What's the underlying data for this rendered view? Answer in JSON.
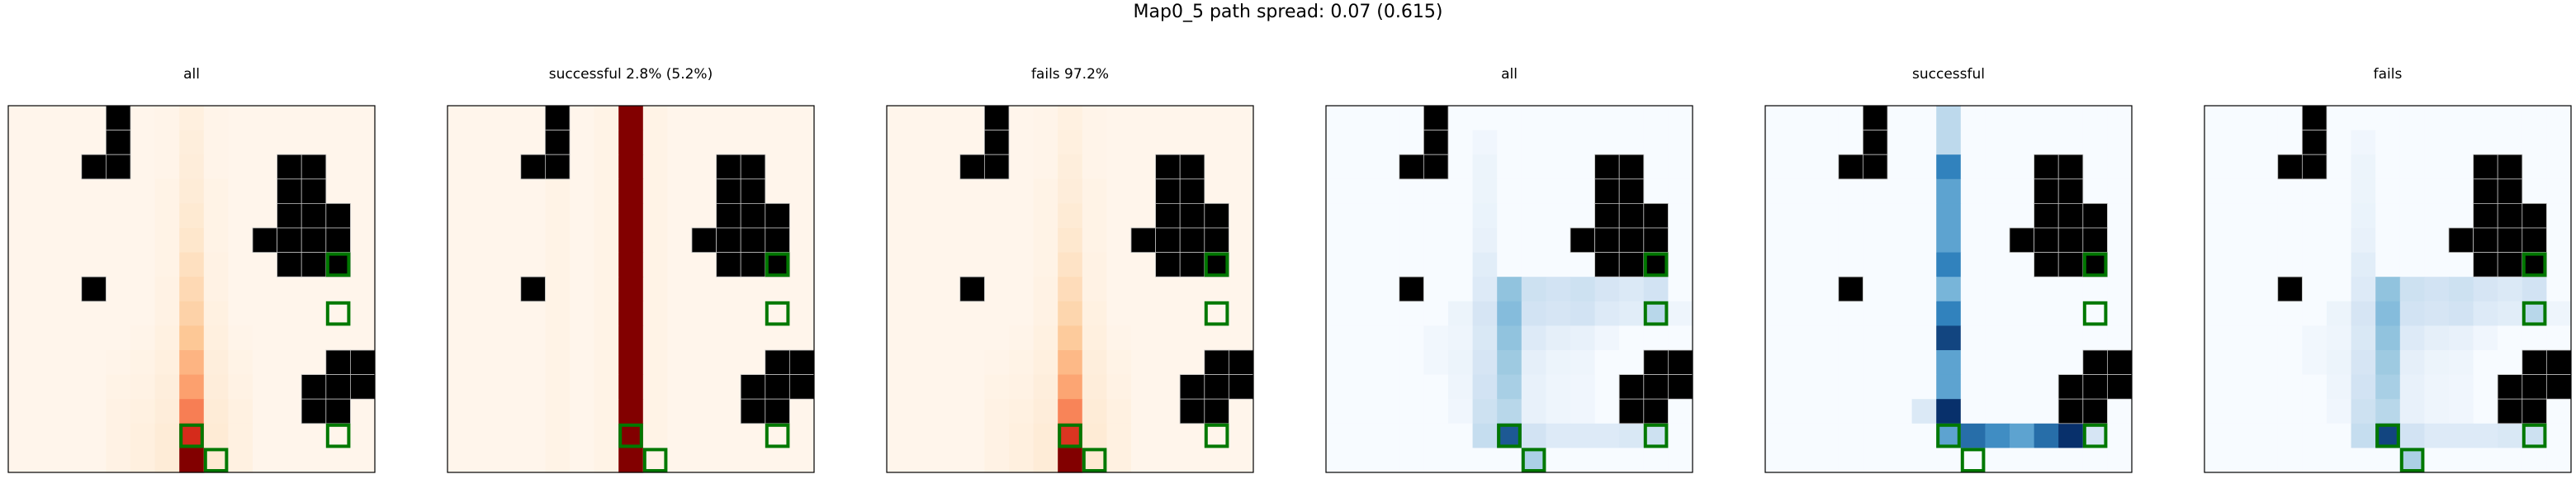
{
  "title": "Map0_5 path spread: 0.07 (0.615)",
  "chart_data": {
    "type": "heatmap",
    "grid_size": [
      15,
      15
    ],
    "obstacles": [
      [
        4,
        0
      ],
      [
        4,
        1
      ],
      [
        3,
        2
      ],
      [
        4,
        2
      ],
      [
        11,
        2
      ],
      [
        12,
        2
      ],
      [
        11,
        3
      ],
      [
        12,
        3
      ],
      [
        11,
        4
      ],
      [
        12,
        4
      ],
      [
        13,
        4
      ],
      [
        10,
        5
      ],
      [
        11,
        5
      ],
      [
        12,
        5
      ],
      [
        13,
        5
      ],
      [
        11,
        6
      ],
      [
        12,
        6
      ],
      [
        13,
        6
      ],
      [
        3,
        7
      ],
      [
        13,
        10
      ],
      [
        14,
        10
      ],
      [
        12,
        11
      ],
      [
        13,
        11
      ],
      [
        14,
        11
      ],
      [
        12,
        12
      ],
      [
        13,
        12
      ]
    ],
    "highlight_cells": [
      [
        13,
        6
      ],
      [
        13,
        8
      ],
      [
        13,
        13
      ],
      [
        7,
        13
      ],
      [
        8,
        14
      ]
    ],
    "panels": [
      {
        "title": "all",
        "colormap": "Oranges-to-darkred",
        "columns": {
          "4": [
            0,
            0,
            0,
            0,
            0,
            0,
            0,
            0,
            0,
            0,
            0.01,
            0.02,
            0.03,
            0.03,
            0.03
          ],
          "5": [
            0,
            0,
            0,
            0,
            0,
            0,
            0,
            0,
            0,
            0.01,
            0.02,
            0.03,
            0.04,
            0.05,
            0.05
          ],
          "6": [
            0.01,
            0.01,
            0.01,
            0.02,
            0.02,
            0.02,
            0.02,
            0.03,
            0.03,
            0.04,
            0.05,
            0.06,
            0.07,
            0.08,
            0.08
          ],
          "7": [
            0.05,
            0.06,
            0.07,
            0.08,
            0.1,
            0.12,
            0.16,
            0.2,
            0.24,
            0.3,
            0.38,
            0.46,
            0.58,
            0.8,
            1.0
          ],
          "8": [
            0.01,
            0.01,
            0.01,
            0.02,
            0.02,
            0.02,
            0.03,
            0.03,
            0.04,
            0.05,
            0.06,
            0.07,
            0.08,
            0.09,
            0.1
          ],
          "9": [
            0,
            0,
            0,
            0,
            0,
            0,
            0,
            0,
            0,
            0.01,
            0.02,
            0.03,
            0.04,
            0.04,
            0.04
          ]
        }
      },
      {
        "title": "successful 2.8% (5.2%)",
        "colormap": "Oranges-to-darkred",
        "columns": {
          "4": [
            0.02,
            0.02,
            0.02,
            0.02,
            0.02,
            0.02,
            0.02,
            0.02,
            0.02,
            0.02,
            0.02,
            0.02,
            0.02,
            0.02,
            0.02
          ],
          "6": [
            0.02,
            0.02,
            0.02,
            0.02,
            0.02,
            0.02,
            0.02,
            0.02,
            0.02,
            0.02,
            0.02,
            0.02,
            0.02,
            0.02,
            0.02
          ],
          "7": [
            1,
            1,
            1,
            1,
            1,
            1,
            1,
            1,
            1,
            1,
            1,
            1,
            1,
            1,
            1
          ],
          "8": [
            0.02,
            0.02,
            0.02,
            0.02,
            0.02,
            0.02,
            0.02,
            0.02,
            0.02,
            0.02,
            0.02,
            0.02,
            0.02,
            0.02,
            0.02
          ]
        }
      },
      {
        "title": "fails 97.2%",
        "colormap": "Oranges-to-darkred",
        "columns": {
          "4": [
            0,
            0,
            0,
            0,
            0,
            0,
            0,
            0,
            0,
            0,
            0.01,
            0.02,
            0.03,
            0.03,
            0.03
          ],
          "5": [
            0,
            0,
            0,
            0,
            0,
            0,
            0,
            0,
            0,
            0.01,
            0.02,
            0.03,
            0.04,
            0.05,
            0.05
          ],
          "6": [
            0.01,
            0.01,
            0.01,
            0.02,
            0.02,
            0.02,
            0.02,
            0.03,
            0.03,
            0.04,
            0.05,
            0.06,
            0.07,
            0.08,
            0.08
          ],
          "7": [
            0.04,
            0.05,
            0.06,
            0.07,
            0.09,
            0.11,
            0.14,
            0.18,
            0.22,
            0.28,
            0.36,
            0.44,
            0.56,
            0.78,
            1.0
          ],
          "8": [
            0.01,
            0.01,
            0.01,
            0.02,
            0.02,
            0.02,
            0.03,
            0.03,
            0.04,
            0.05,
            0.06,
            0.07,
            0.08,
            0.09,
            0.1
          ],
          "9": [
            0,
            0,
            0,
            0,
            0,
            0,
            0,
            0,
            0,
            0.01,
            0.02,
            0.03,
            0.04,
            0.04,
            0.04
          ]
        }
      },
      {
        "title": "all",
        "colormap": "Blues",
        "cells": [
          [
            6,
            1,
            0.04
          ],
          [
            6,
            2,
            0.06
          ],
          [
            6,
            3,
            0.06
          ],
          [
            6,
            4,
            0.07
          ],
          [
            6,
            5,
            0.08
          ],
          [
            6,
            6,
            0.12
          ],
          [
            6,
            7,
            0.14
          ],
          [
            6,
            8,
            0.18
          ],
          [
            6,
            9,
            0.16
          ],
          [
            6,
            10,
            0.18
          ],
          [
            6,
            11,
            0.2
          ],
          [
            6,
            12,
            0.22
          ],
          [
            6,
            13,
            0.25
          ],
          [
            5,
            8,
            0.06
          ],
          [
            5,
            9,
            0.05
          ],
          [
            5,
            10,
            0.06
          ],
          [
            5,
            11,
            0.05
          ],
          [
            5,
            12,
            0.04
          ],
          [
            4,
            9,
            0.03
          ],
          [
            4,
            10,
            0.03
          ],
          [
            7,
            7,
            0.45
          ],
          [
            7,
            8,
            0.5
          ],
          [
            7,
            9,
            0.45
          ],
          [
            7,
            10,
            0.4
          ],
          [
            7,
            11,
            0.36
          ],
          [
            7,
            12,
            0.3
          ],
          [
            7,
            13,
            0.9
          ],
          [
            8,
            7,
            0.22
          ],
          [
            8,
            8,
            0.2
          ],
          [
            8,
            9,
            0.14
          ],
          [
            8,
            10,
            0.1
          ],
          [
            8,
            11,
            0.08
          ],
          [
            8,
            12,
            0.08
          ],
          [
            8,
            13,
            0.2
          ],
          [
            8,
            14,
            0.35
          ],
          [
            9,
            7,
            0.2
          ],
          [
            9,
            8,
            0.18
          ],
          [
            9,
            9,
            0.1
          ],
          [
            9,
            10,
            0.06
          ],
          [
            9,
            11,
            0.05
          ],
          [
            9,
            12,
            0.05
          ],
          [
            9,
            13,
            0.14
          ],
          [
            10,
            7,
            0.22
          ],
          [
            10,
            8,
            0.2
          ],
          [
            10,
            9,
            0.08
          ],
          [
            10,
            10,
            0.05
          ],
          [
            10,
            11,
            0.04
          ],
          [
            10,
            12,
            0.04
          ],
          [
            10,
            13,
            0.14
          ],
          [
            11,
            7,
            0.18
          ],
          [
            11,
            8,
            0.14
          ],
          [
            11,
            9,
            0.04
          ],
          [
            11,
            13,
            0.14
          ],
          [
            12,
            7,
            0.15
          ],
          [
            12,
            8,
            0.12
          ],
          [
            12,
            13,
            0.16
          ],
          [
            13,
            6,
            0.3
          ],
          [
            13,
            7,
            0.2
          ],
          [
            13,
            8,
            0.3
          ],
          [
            13,
            13,
            0.22
          ],
          [
            14,
            8,
            0.05
          ]
        ]
      },
      {
        "title": "successful",
        "colormap": "Blues",
        "cells": [
          [
            7,
            0,
            0.28
          ],
          [
            7,
            1,
            0.28
          ],
          [
            7,
            2,
            0.8
          ],
          [
            7,
            3,
            0.65
          ],
          [
            7,
            4,
            0.65
          ],
          [
            7,
            5,
            0.65
          ],
          [
            7,
            6,
            0.8
          ],
          [
            7,
            7,
            0.55
          ],
          [
            7,
            8,
            0.8
          ],
          [
            7,
            9,
            0.95
          ],
          [
            7,
            10,
            0.65
          ],
          [
            7,
            11,
            0.65
          ],
          [
            7,
            12,
            1.0
          ],
          [
            7,
            13,
            0.65
          ],
          [
            6,
            12,
            0.15
          ],
          [
            8,
            13,
            0.85
          ],
          [
            9,
            13,
            0.75
          ],
          [
            10,
            13,
            0.65
          ],
          [
            11,
            13,
            0.85
          ],
          [
            12,
            13,
            1.0
          ],
          [
            13,
            13,
            0.18
          ]
        ]
      },
      {
        "title": "fails",
        "colormap": "Blues",
        "cells": [
          [
            6,
            1,
            0.04
          ],
          [
            6,
            2,
            0.06
          ],
          [
            6,
            3,
            0.06
          ],
          [
            6,
            4,
            0.07
          ],
          [
            6,
            5,
            0.08
          ],
          [
            6,
            6,
            0.12
          ],
          [
            6,
            7,
            0.14
          ],
          [
            6,
            8,
            0.18
          ],
          [
            6,
            9,
            0.16
          ],
          [
            6,
            10,
            0.18
          ],
          [
            6,
            11,
            0.2
          ],
          [
            6,
            12,
            0.22
          ],
          [
            6,
            13,
            0.25
          ],
          [
            5,
            8,
            0.06
          ],
          [
            5,
            9,
            0.05
          ],
          [
            5,
            10,
            0.06
          ],
          [
            5,
            11,
            0.05
          ],
          [
            5,
            12,
            0.04
          ],
          [
            4,
            9,
            0.03
          ],
          [
            4,
            10,
            0.03
          ],
          [
            7,
            7,
            0.45
          ],
          [
            7,
            8,
            0.5
          ],
          [
            7,
            9,
            0.45
          ],
          [
            7,
            10,
            0.4
          ],
          [
            7,
            11,
            0.36
          ],
          [
            7,
            12,
            0.3
          ],
          [
            7,
            13,
            0.95
          ],
          [
            8,
            7,
            0.22
          ],
          [
            8,
            8,
            0.2
          ],
          [
            8,
            9,
            0.14
          ],
          [
            8,
            10,
            0.1
          ],
          [
            8,
            11,
            0.08
          ],
          [
            8,
            12,
            0.08
          ],
          [
            8,
            13,
            0.2
          ],
          [
            8,
            14,
            0.35
          ],
          [
            9,
            7,
            0.2
          ],
          [
            9,
            8,
            0.18
          ],
          [
            9,
            9,
            0.1
          ],
          [
            9,
            10,
            0.06
          ],
          [
            9,
            11,
            0.05
          ],
          [
            9,
            12,
            0.05
          ],
          [
            9,
            13,
            0.14
          ],
          [
            10,
            7,
            0.22
          ],
          [
            10,
            8,
            0.2
          ],
          [
            10,
            9,
            0.08
          ],
          [
            10,
            10,
            0.05
          ],
          [
            10,
            11,
            0.04
          ],
          [
            10,
            12,
            0.04
          ],
          [
            10,
            13,
            0.14
          ],
          [
            11,
            7,
            0.18
          ],
          [
            11,
            8,
            0.14
          ],
          [
            11,
            9,
            0.04
          ],
          [
            11,
            13,
            0.14
          ],
          [
            12,
            7,
            0.15
          ],
          [
            12,
            8,
            0.12
          ],
          [
            12,
            13,
            0.16
          ],
          [
            13,
            6,
            0.3
          ],
          [
            13,
            7,
            0.2
          ],
          [
            13,
            8,
            0.3
          ],
          [
            13,
            13,
            0.22
          ],
          [
            14,
            8,
            0.05
          ]
        ]
      }
    ]
  }
}
